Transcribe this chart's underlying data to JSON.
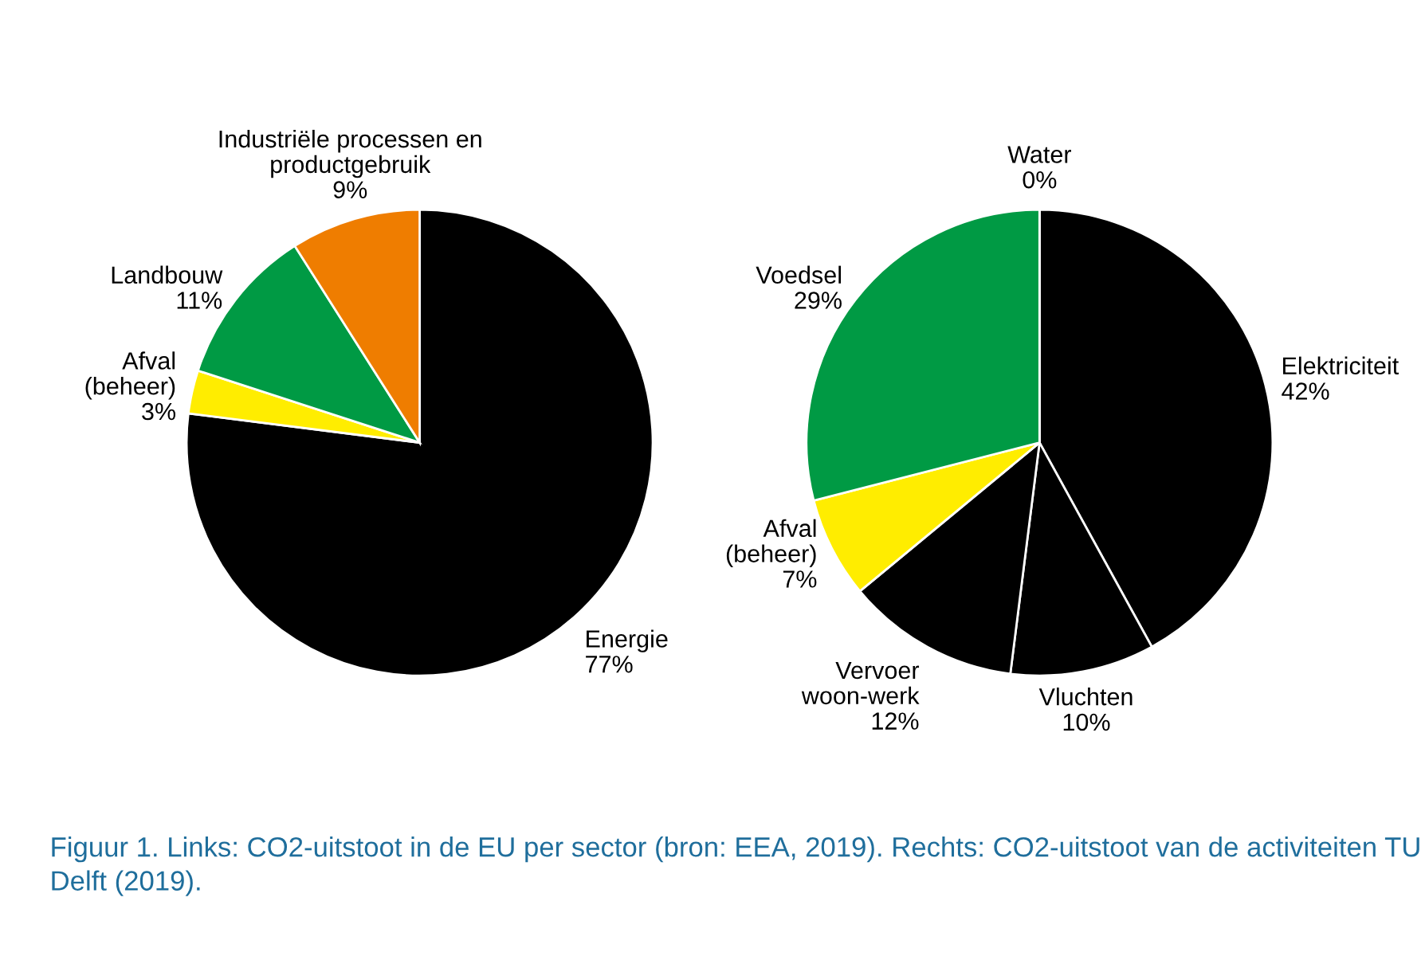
{
  "chart_data": [
    {
      "type": "pie",
      "categories": [
        "Energie",
        "Afval\n(beheer)",
        "Landbouw",
        "Industriële processen en\nproductgebruik"
      ],
      "values": [
        77,
        3,
        11,
        9
      ],
      "value_labels": [
        "77%",
        "3%",
        "11%",
        "9%"
      ],
      "colors": [
        "#000000",
        "#ffed00",
        "#009a44",
        "#ef7d00"
      ],
      "annotations": [
        "Figuur 1. Links: CO2-uitstoot in de EU per sector (bron: EEA, 2019). Rechts: CO2-uitstoot van de activiteiten TU Delft (2019)."
      ]
    },
    {
      "type": "pie",
      "categories": [
        "Elektriciteit",
        "Vluchten",
        "Vervoer\nwoon-werk",
        "Afval\n(beheer)",
        "Voedsel",
        "Water"
      ],
      "values": [
        42,
        10,
        12,
        7,
        29,
        0
      ],
      "value_labels": [
        "42%",
        "10%",
        "12%",
        "7%",
        "29%",
        "0%"
      ],
      "colors": [
        "#000000",
        "#000000",
        "#000000",
        "#ffed00",
        "#009a44",
        "#0070c0"
      ]
    }
  ]
}
